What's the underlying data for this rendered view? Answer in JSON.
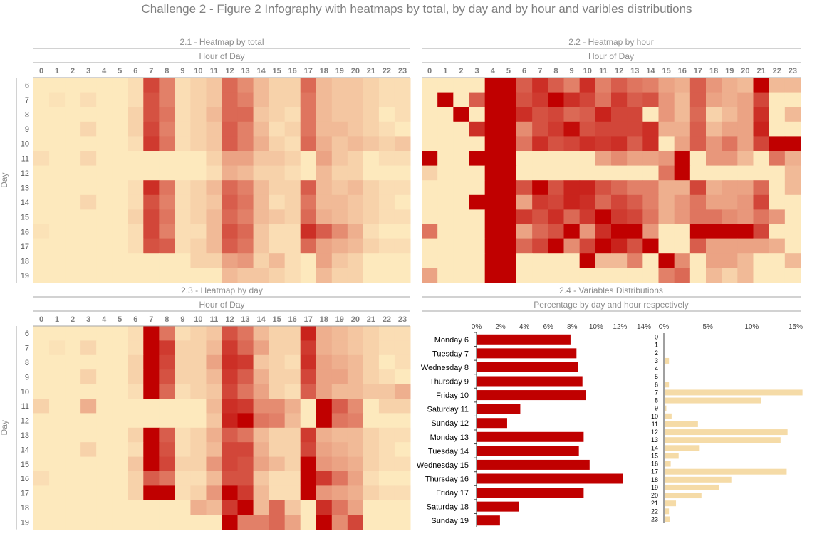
{
  "title": "Challenge 2 - Figure 2   Infography with heatmaps by total, by day and by hour and varibles distributions",
  "colors": {
    "low": "#fde9bd",
    "high": "#c00000",
    "bar_day": "#c00000",
    "bar_hour": "#f5dba7"
  },
  "chart_data": [
    {
      "type": "heatmap",
      "title": "2.1  - Heatmap by total",
      "xlabel": "Hour of Day",
      "ylabel": "Day",
      "x": [
        "0",
        "1",
        "2",
        "3",
        "4",
        "5",
        "6",
        "7",
        "8",
        "9",
        "10",
        "11",
        "12",
        "13",
        "14",
        "15",
        "16",
        "17",
        "18",
        "19",
        "20",
        "21",
        "22",
        "23"
      ],
      "y": [
        "6",
        "7",
        "8",
        "9",
        "10",
        "11",
        "12",
        "13",
        "14",
        "15",
        "16",
        "17",
        "18",
        "19"
      ],
      "z": [
        [
          0,
          0,
          0,
          0,
          0,
          0,
          0.05,
          0.7,
          0.45,
          0.05,
          0.1,
          0.15,
          0.55,
          0.4,
          0.2,
          0.1,
          0.1,
          0.55,
          0.2,
          0.15,
          0.15,
          0.1,
          0.05,
          0.05
        ],
        [
          0,
          0.03,
          0,
          0.05,
          0,
          0,
          0.05,
          0.65,
          0.45,
          0.05,
          0.1,
          0.15,
          0.55,
          0.45,
          0.2,
          0.1,
          0.1,
          0.5,
          0.2,
          0.15,
          0.15,
          0.1,
          0.05,
          0.05
        ],
        [
          0,
          0,
          0,
          0,
          0,
          0,
          0.1,
          0.65,
          0.5,
          0.05,
          0.1,
          0.2,
          0.55,
          0.55,
          0.15,
          0.1,
          0.05,
          0.5,
          0.2,
          0.15,
          0.15,
          0.1,
          0,
          0.05
        ],
        [
          0,
          0,
          0,
          0.08,
          0,
          0,
          0.1,
          0.7,
          0.45,
          0.05,
          0.1,
          0.15,
          0.6,
          0.45,
          0.2,
          0.05,
          0.1,
          0.5,
          0.2,
          0.2,
          0.15,
          0.1,
          0.05,
          0
        ],
        [
          0,
          0,
          0,
          0,
          0,
          0,
          0.05,
          0.75,
          0.5,
          0.05,
          0.1,
          0.15,
          0.6,
          0.45,
          0.25,
          0.1,
          0.05,
          0.55,
          0.25,
          0.15,
          0.2,
          0.15,
          0.1,
          0.15
        ],
        [
          0.05,
          0,
          0,
          0.08,
          0,
          0,
          0,
          0,
          0,
          0,
          0,
          0.1,
          0.3,
          0.3,
          0.15,
          0.15,
          0.1,
          0,
          0.3,
          0.15,
          0.1,
          0,
          0.05,
          0.05
        ],
        [
          0,
          0,
          0,
          0,
          0,
          0,
          0,
          0,
          0,
          0,
          0,
          0.05,
          0.25,
          0.2,
          0.1,
          0.1,
          0.05,
          0,
          0.2,
          0.1,
          0.1,
          0,
          0,
          0
        ],
        [
          0,
          0,
          0,
          0,
          0,
          0,
          0.05,
          0.8,
          0.5,
          0.05,
          0.1,
          0.2,
          0.55,
          0.45,
          0.2,
          0.1,
          0.1,
          0.6,
          0.2,
          0.15,
          0.2,
          0.1,
          0.05,
          0.05
        ],
        [
          0,
          0,
          0,
          0.08,
          0,
          0,
          0.05,
          0.65,
          0.45,
          0.05,
          0.1,
          0.15,
          0.6,
          0.5,
          0.2,
          0.05,
          0.1,
          0.5,
          0.2,
          0.2,
          0.15,
          0.1,
          0.05,
          0
        ],
        [
          0,
          0,
          0,
          0,
          0,
          0,
          0.1,
          0.7,
          0.5,
          0.05,
          0.1,
          0.2,
          0.55,
          0.45,
          0.2,
          0.15,
          0.1,
          0.55,
          0.25,
          0.2,
          0.15,
          0.1,
          0.05,
          0.05
        ],
        [
          0.03,
          0,
          0,
          0,
          0,
          0,
          0.05,
          0.7,
          0.45,
          0.05,
          0.05,
          0.2,
          0.65,
          0.55,
          0.15,
          0.05,
          0.05,
          0.8,
          0.6,
          0.4,
          0.25,
          0.05,
          0,
          0
        ],
        [
          0,
          0,
          0,
          0,
          0,
          0,
          0.05,
          0.65,
          0.6,
          0.05,
          0.1,
          0.2,
          0.6,
          0.5,
          0.15,
          0.05,
          0.05,
          0.55,
          0.3,
          0.25,
          0.2,
          0.1,
          0.05,
          0.05
        ],
        [
          0,
          0,
          0,
          0,
          0,
          0,
          0,
          0,
          0,
          0,
          0.1,
          0.1,
          0.3,
          0.35,
          0.1,
          0.2,
          0.05,
          0,
          0.3,
          0.15,
          0.1,
          0,
          0,
          0
        ],
        [
          0,
          0,
          0,
          0,
          0,
          0,
          0,
          0,
          0,
          0,
          0,
          0,
          0.2,
          0.15,
          0.15,
          0.1,
          0.05,
          0,
          0.2,
          0.1,
          0.1,
          0,
          0,
          0
        ]
      ]
    },
    {
      "type": "heatmap",
      "title": "2.2  - Heatmap by hour",
      "xlabel": "Hour of Day",
      "x": [
        "0",
        "1",
        "2",
        "3",
        "4",
        "5",
        "6",
        "7",
        "8",
        "9",
        "10",
        "11",
        "12",
        "13",
        "14",
        "15",
        "16",
        "17",
        "18",
        "19",
        "20",
        "21",
        "22",
        "23"
      ],
      "y": [
        "6",
        "7",
        "8",
        "9",
        "10",
        "11",
        "12",
        "13",
        "14",
        "15",
        "16",
        "17",
        "18",
        "19"
      ],
      "z": [
        [
          0,
          0,
          0,
          0,
          1,
          1,
          0.6,
          0.8,
          0.6,
          0.45,
          0.8,
          0.45,
          0.6,
          0.5,
          0.45,
          0.3,
          0.25,
          0.6,
          0.35,
          0.25,
          0.2,
          1,
          0.2,
          0.2
        ],
        [
          0,
          1,
          0,
          0.6,
          1,
          1,
          0.65,
          0.75,
          1,
          0.8,
          0.7,
          0.5,
          0.75,
          0.6,
          0.65,
          0.35,
          0.2,
          0.6,
          0.3,
          0.25,
          0.3,
          0.7,
          0,
          0
        ],
        [
          0,
          0,
          1,
          0,
          1,
          1,
          0.8,
          0.65,
          0.7,
          0.55,
          0.6,
          0.85,
          0.7,
          0.7,
          0,
          0.35,
          0.2,
          0.55,
          0.1,
          0.2,
          0.3,
          0.8,
          0,
          0.2
        ],
        [
          0,
          0,
          0,
          0.8,
          1,
          1,
          0.4,
          0.65,
          0.75,
          0.95,
          0.65,
          0.7,
          0.7,
          0.7,
          0.8,
          0.25,
          0.25,
          0.6,
          0.2,
          0.3,
          0.3,
          0.85,
          0,
          0
        ],
        [
          0,
          0,
          0,
          0,
          1,
          1,
          0.5,
          0.8,
          0.65,
          0.7,
          0.8,
          0.75,
          0.8,
          0.6,
          0.8,
          0,
          0.3,
          0.6,
          0.35,
          0.5,
          0.3,
          0.7,
          1,
          1
        ],
        [
          1,
          0,
          0,
          1,
          1,
          1,
          0,
          0,
          0,
          0,
          0,
          0.3,
          0.4,
          0.3,
          0.3,
          0.35,
          1,
          0,
          0.35,
          0.35,
          0.2,
          0,
          0.5,
          0.25
        ],
        [
          0.1,
          0,
          0,
          0,
          1,
          1,
          0,
          0,
          0,
          0,
          0,
          0,
          0,
          0,
          0,
          0.5,
          1,
          0,
          0,
          0,
          0,
          0,
          0,
          0.2
        ],
        [
          0,
          0,
          0,
          0,
          1,
          1,
          0.65,
          1,
          0.65,
          0.85,
          0.85,
          0.65,
          0.55,
          0.45,
          0.45,
          0.25,
          0.25,
          0.7,
          0.25,
          0.3,
          0.3,
          0.55,
          0,
          0.2
        ],
        [
          0,
          0,
          0,
          1,
          1,
          1,
          0.3,
          0.75,
          0.7,
          0.85,
          0.8,
          0.55,
          0.7,
          0.6,
          0.45,
          0.25,
          0.35,
          0.5,
          0.3,
          0.3,
          0.35,
          0.7,
          0,
          0
        ],
        [
          0,
          0,
          0,
          0,
          1,
          1,
          0.75,
          0.65,
          0.8,
          0.55,
          0.75,
          1,
          0.75,
          0.7,
          0.5,
          0.25,
          0.35,
          0.5,
          0.5,
          0.4,
          0.35,
          0.5,
          0.35,
          0
        ],
        [
          0.5,
          0,
          0,
          0,
          1,
          1,
          0.3,
          0.55,
          0.65,
          1,
          0.35,
          0.8,
          1,
          1,
          0.35,
          0,
          0,
          1,
          1,
          1,
          1,
          0.7,
          0,
          0
        ],
        [
          0,
          0,
          0,
          0,
          1,
          1,
          0.55,
          0.7,
          1,
          0.4,
          0.7,
          1,
          0.85,
          0.65,
          1,
          0,
          0,
          0.6,
          0.3,
          0.3,
          0.3,
          0.3,
          0.25,
          0
        ],
        [
          0,
          0,
          0,
          0,
          1,
          1,
          0,
          0,
          0,
          0,
          1,
          0.2,
          0.2,
          0.45,
          0,
          1,
          0.4,
          0,
          0.3,
          0.3,
          0.2,
          0,
          0,
          0.2
        ],
        [
          0.3,
          0,
          0,
          0,
          1,
          1,
          0,
          0,
          0,
          0,
          0,
          0,
          0,
          0,
          0,
          0.45,
          0.55,
          0,
          0.2,
          0.1,
          0.2,
          0,
          0,
          0
        ]
      ]
    },
    {
      "type": "heatmap",
      "title": "2.3  - Heatmap by day",
      "xlabel": "Hour of Day",
      "ylabel": "Day",
      "x": [
        "0",
        "1",
        "2",
        "3",
        "4",
        "5",
        "6",
        "7",
        "8",
        "9",
        "10",
        "11",
        "12",
        "13",
        "14",
        "15",
        "16",
        "17",
        "18",
        "19",
        "20",
        "21",
        "22",
        "23"
      ],
      "y": [
        "6",
        "7",
        "8",
        "9",
        "10",
        "11",
        "12",
        "13",
        "14",
        "15",
        "16",
        "17",
        "18",
        "19"
      ],
      "z": [
        [
          0,
          0,
          0,
          0,
          0,
          0,
          0.05,
          1,
          0.5,
          0.05,
          0.1,
          0.15,
          0.65,
          0.5,
          0.2,
          0.1,
          0.1,
          0.85,
          0.25,
          0.2,
          0.15,
          0.1,
          0.05,
          0.05
        ],
        [
          0,
          0.03,
          0,
          0.08,
          0,
          0,
          0.05,
          1,
          0.75,
          0.1,
          0.1,
          0.2,
          0.75,
          0.55,
          0.3,
          0.1,
          0.1,
          0.75,
          0.25,
          0.2,
          0.15,
          0.1,
          0.05,
          0.05
        ],
        [
          0,
          0,
          0,
          0,
          0,
          0,
          0.1,
          1,
          0.7,
          0.1,
          0.1,
          0.3,
          0.8,
          0.75,
          0.15,
          0.1,
          0.05,
          0.8,
          0.3,
          0.25,
          0.2,
          0.1,
          0,
          0.05
        ],
        [
          0,
          0,
          0,
          0.1,
          0,
          0,
          0.1,
          1,
          0.65,
          0.1,
          0.1,
          0.2,
          0.75,
          0.6,
          0.25,
          0.1,
          0.1,
          0.7,
          0.3,
          0.3,
          0.2,
          0.1,
          0.05,
          0
        ],
        [
          0,
          0,
          0,
          0,
          0,
          0,
          0.05,
          1,
          0.55,
          0.05,
          0.1,
          0.15,
          0.7,
          0.5,
          0.3,
          0.1,
          0.05,
          0.6,
          0.3,
          0.2,
          0.2,
          0.15,
          0.15,
          0.25
        ],
        [
          0.1,
          0,
          0,
          0.25,
          0,
          0,
          0,
          0,
          0,
          0,
          0,
          0.2,
          0.8,
          0.75,
          0.4,
          0.4,
          0.25,
          0,
          1,
          0.6,
          0.4,
          0,
          0.1,
          0.1
        ],
        [
          0,
          0,
          0,
          0,
          0,
          0,
          0,
          0,
          0,
          0,
          0,
          0.15,
          0.85,
          1,
          0.5,
          0.45,
          0.2,
          0,
          1,
          0.5,
          0.45,
          0,
          0,
          0
        ],
        [
          0,
          0,
          0,
          0,
          0,
          0,
          0.1,
          1,
          0.6,
          0.05,
          0.1,
          0.25,
          0.6,
          0.5,
          0.2,
          0.1,
          0.1,
          0.75,
          0.25,
          0.2,
          0.2,
          0.1,
          0.05,
          0.05
        ],
        [
          0,
          0,
          0,
          0.1,
          0,
          0,
          0.05,
          1,
          0.65,
          0.05,
          0.1,
          0.2,
          0.7,
          0.7,
          0.25,
          0.1,
          0.1,
          0.7,
          0.3,
          0.25,
          0.2,
          0.1,
          0.05,
          0
        ],
        [
          0,
          0,
          0,
          0,
          0,
          0,
          0.15,
          1,
          0.7,
          0.1,
          0.1,
          0.35,
          0.7,
          0.65,
          0.3,
          0.2,
          0.1,
          1,
          0.35,
          0.3,
          0.25,
          0.1,
          0.05,
          0.05
        ],
        [
          0.05,
          0,
          0,
          0,
          0,
          0,
          0.1,
          0.6,
          0.5,
          0.05,
          0.05,
          0.2,
          0.65,
          0.65,
          0.15,
          0.05,
          0.05,
          1,
          0.75,
          0.5,
          0.3,
          0.05,
          0,
          0
        ],
        [
          0,
          0,
          0,
          0,
          0,
          0,
          0.1,
          1,
          1,
          0.05,
          0.1,
          0.35,
          1,
          0.75,
          0.2,
          0.05,
          0.05,
          1,
          0.35,
          0.3,
          0.25,
          0.1,
          0.05,
          0.05
        ],
        [
          0,
          0,
          0,
          0,
          0,
          0,
          0,
          0,
          0,
          0,
          0.25,
          0.2,
          0.75,
          1,
          0.2,
          0.55,
          0.15,
          0,
          0.8,
          0.5,
          0.3,
          0,
          0,
          0
        ],
        [
          0,
          0,
          0,
          0,
          0,
          0,
          0,
          0,
          0,
          0,
          0,
          0,
          1,
          0.45,
          0.45,
          0.55,
          0.3,
          0,
          1,
          0.4,
          0.7,
          0,
          0,
          0
        ]
      ]
    },
    {
      "type": "bar",
      "title": "2.4 - Variables Distributions",
      "subtitle": "Percentage by  day and hour respectively",
      "orientation": "horizontal",
      "categories": [
        "Monday  6",
        "Tuesday  7",
        "Wednesday  8",
        "Thursday  9",
        "Friday  10",
        "Saturday  11",
        "Sunday  12",
        "Monday  13",
        "Tuesday  14",
        "Wednesday  15",
        "Thursday  16",
        "Friday  17",
        "Saturday  18",
        "Sunday  19"
      ],
      "values": [
        7.8,
        8.3,
        8.4,
        8.8,
        9.1,
        3.6,
        2.5,
        8.9,
        8.5,
        9.4,
        12.2,
        8.9,
        3.5,
        1.9
      ],
      "xticks": [
        "0%",
        "2%",
        "4%",
        "6%",
        "8%",
        "10%",
        "12%",
        "14%"
      ],
      "xlim": [
        0,
        14
      ]
    },
    {
      "type": "bar",
      "orientation": "horizontal",
      "categories": [
        "0",
        "1",
        "2",
        "3",
        "4",
        "5",
        "6",
        "7",
        "8",
        "9",
        "10",
        "11",
        "12",
        "13",
        "14",
        "15",
        "16",
        "17",
        "18",
        "19",
        "20",
        "21",
        "22",
        "23"
      ],
      "values": [
        0,
        0,
        0,
        0.5,
        0,
        0,
        0.5,
        15.7,
        11,
        0.2,
        0.8,
        3.8,
        14,
        13.2,
        4,
        1.6,
        0.7,
        13.9,
        7.6,
        6.2,
        4.2,
        1.3,
        0.5,
        0.6
      ],
      "xticks": [
        "0%",
        "5%",
        "10%",
        "15%"
      ],
      "xlim": [
        0,
        15
      ]
    }
  ]
}
